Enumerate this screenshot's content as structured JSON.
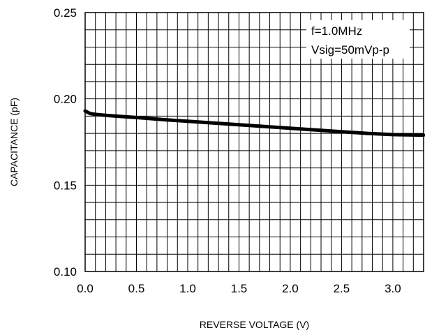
{
  "chart_data": {
    "type": "line",
    "xlabel": "REVERSE VOLTAGE (V)",
    "ylabel": "CAPACITANCE (pF)",
    "xlim": [
      0,
      3.3
    ],
    "ylim": [
      0.1,
      0.25
    ],
    "x_ticks": [
      "0.0",
      "0.5",
      "1.0",
      "1.5",
      "2.0",
      "2.5",
      "3.0"
    ],
    "x_tick_values": [
      0,
      0.5,
      1.0,
      1.5,
      2.0,
      2.5,
      3.0
    ],
    "y_ticks": [
      "0.10",
      "0.15",
      "0.20",
      "0.25"
    ],
    "y_tick_values": [
      0.1,
      0.15,
      0.2,
      0.25
    ],
    "grid": true,
    "annotations": [
      "f=1.0MHz",
      "Vsig=50mVp-p"
    ],
    "series": [
      {
        "x": [
          0,
          0.05,
          0.1,
          0.2,
          0.3,
          0.5,
          0.75,
          1.0,
          1.25,
          1.5,
          1.75,
          2.0,
          2.25,
          2.5,
          2.75,
          3.0,
          3.3
        ],
        "values": [
          0.193,
          0.1915,
          0.191,
          0.1905,
          0.19,
          0.1892,
          0.188,
          0.187,
          0.186,
          0.185,
          0.184,
          0.183,
          0.182,
          0.181,
          0.18,
          0.1793,
          0.179
        ]
      }
    ]
  }
}
